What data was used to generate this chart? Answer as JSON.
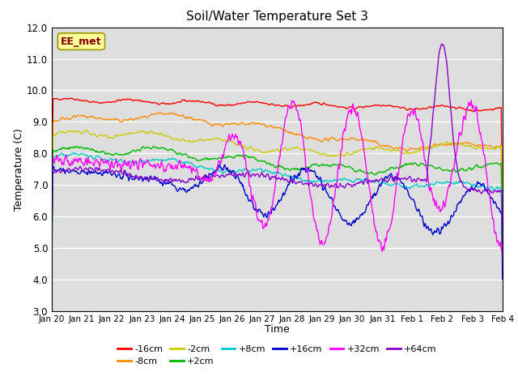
{
  "title": "Soil/Water Temperature Set 3",
  "xlabel": "Time",
  "ylabel": "Temperature (C)",
  "ylim": [
    3.0,
    12.0
  ],
  "yticks": [
    3.0,
    4.0,
    5.0,
    6.0,
    7.0,
    8.0,
    9.0,
    10.0,
    11.0,
    12.0
  ],
  "series": [
    {
      "label": "-16cm",
      "color": "#ff0000"
    },
    {
      "label": "-8cm",
      "color": "#ff8c00"
    },
    {
      "label": "-2cm",
      "color": "#cccc00"
    },
    {
      "label": "+2cm",
      "color": "#00bb00"
    },
    {
      "label": "+8cm",
      "color": "#00cccc"
    },
    {
      "label": "+16cm",
      "color": "#0000cc"
    },
    {
      "label": "+32cm",
      "color": "#ff00ff"
    },
    {
      "label": "+64cm",
      "color": "#8800cc"
    }
  ],
  "xtick_labels": [
    "Jan 20",
    "Jan 21",
    "Jan 22",
    "Jan 23",
    "Jan 24",
    "Jan 25",
    "Jan 26",
    "Jan 27",
    "Jan 28",
    "Jan 29",
    "Jan 30",
    "Jan 31",
    "Feb 1",
    "Feb 2",
    "Feb 3",
    "Feb 4"
  ],
  "annotation": "EE_met",
  "annotation_bg": "#ffff99",
  "annotation_border": "#999900",
  "annotation_text_color": "#880000",
  "n_points": 720
}
